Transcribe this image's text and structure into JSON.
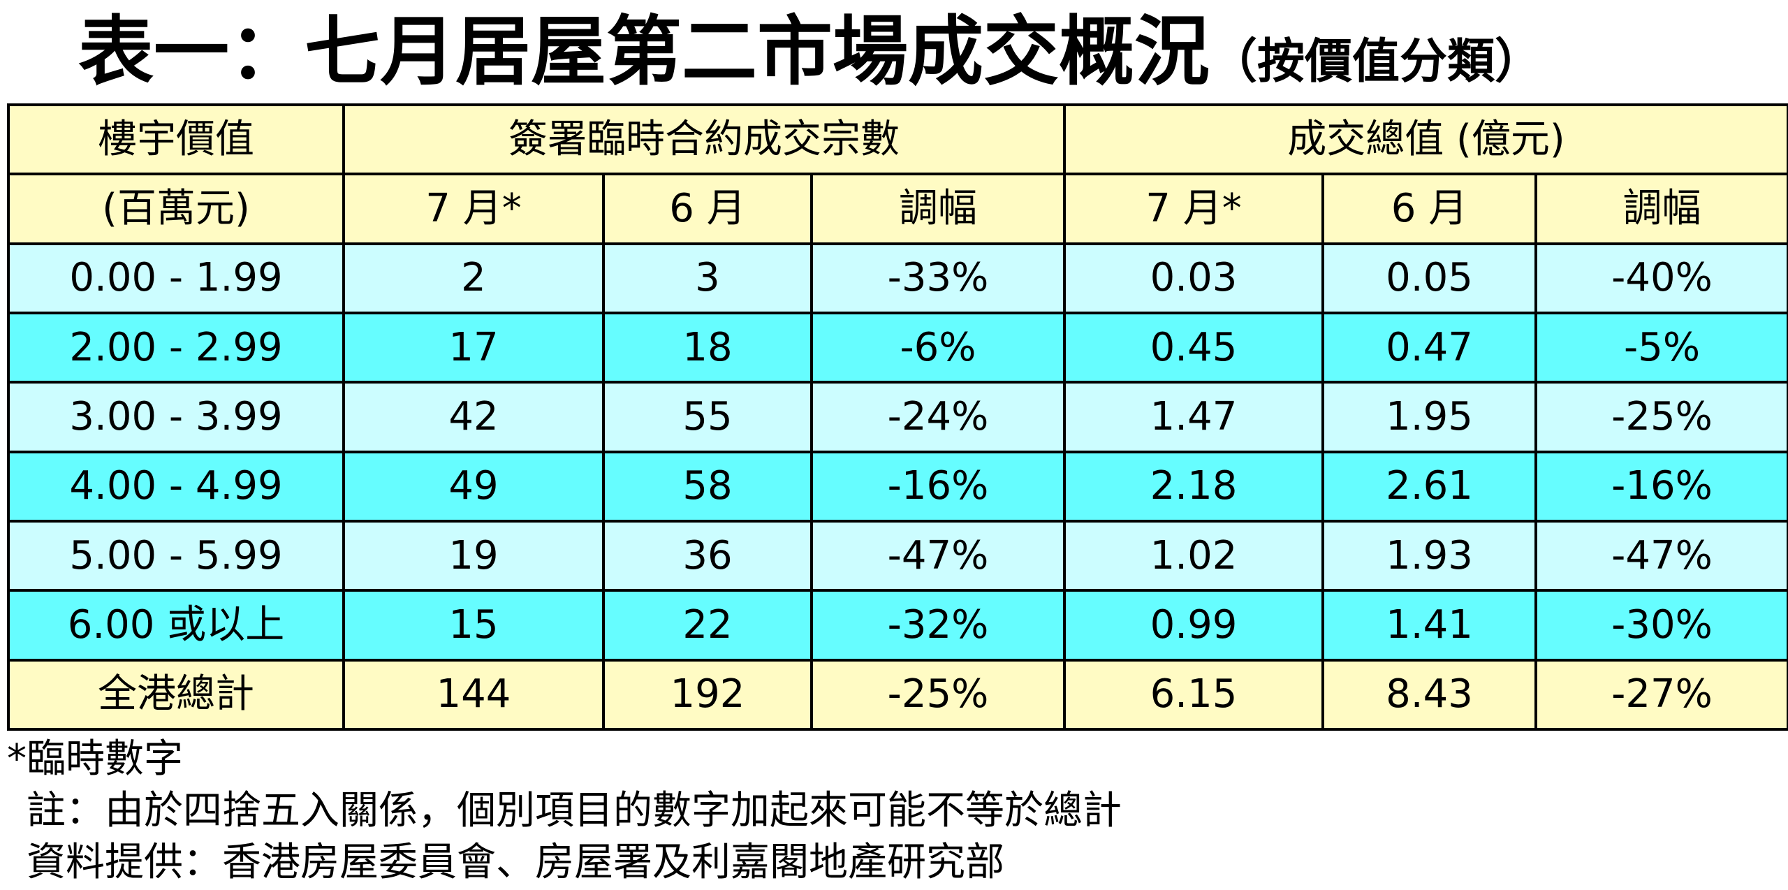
{
  "title": {
    "main": "表一：七月居屋第二市場成交概況",
    "sub": "（按價值分類）"
  },
  "table": {
    "header": {
      "col0_line1": "樓宇價值",
      "col0_line2": "(百萬元)",
      "group1": "簽署臨時合約成交宗數",
      "group2": "成交總值 (億元)",
      "sub1": [
        "7 月*",
        "6 月",
        "調幅"
      ],
      "sub2": [
        "7 月*",
        "6 月",
        "調幅"
      ]
    },
    "rows": [
      {
        "range": "0.00 - 1.99",
        "cells": [
          "2",
          "3",
          "-33%",
          "0.03",
          "0.05",
          "-40%"
        ]
      },
      {
        "range": "2.00 - 2.99",
        "cells": [
          "17",
          "18",
          "-6%",
          "0.45",
          "0.47",
          "-5%"
        ]
      },
      {
        "range": "3.00 - 3.99",
        "cells": [
          "42",
          "55",
          "-24%",
          "1.47",
          "1.95",
          "-25%"
        ]
      },
      {
        "range": "4.00 - 4.99",
        "cells": [
          "49",
          "58",
          "-16%",
          "2.18",
          "2.61",
          "-16%"
        ]
      },
      {
        "range": "5.00 - 5.99",
        "cells": [
          "19",
          "36",
          "-47%",
          "1.02",
          "1.93",
          "-47%"
        ]
      },
      {
        "range": "6.00 或以上",
        "cells": [
          "15",
          "22",
          "-32%",
          "0.99",
          "1.41",
          "-30%"
        ]
      }
    ],
    "total": {
      "range": "全港總計",
      "cells": [
        "144",
        "192",
        "-25%",
        "6.15",
        "8.43",
        "-27%"
      ]
    }
  },
  "colors": {
    "header_bg": "#fffbc4",
    "row_light": "#ccfdff",
    "row_cyan": "#66fdff",
    "border": "#000000"
  },
  "notes": {
    "provisional": "*臨時數字",
    "rounding": "註：由於四捨五入關係，個別項目的數字加起來可能不等於總計",
    "source": "資料提供：香港房屋委員會、房屋署及利嘉閣地產研究部"
  }
}
